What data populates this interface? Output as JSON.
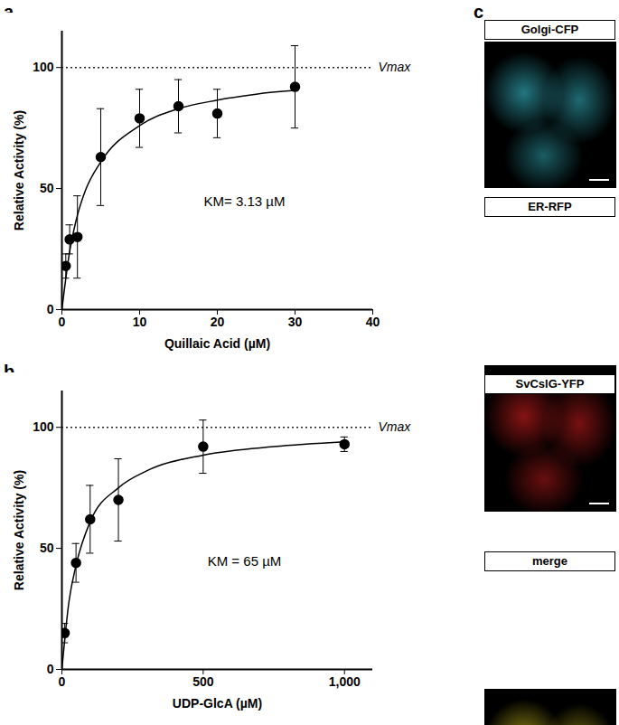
{
  "chart_data": [
    {
      "type": "scatter",
      "title": "a",
      "x_label": "Quillaic Acid (µM)",
      "y_label": "Relative Activity (%)",
      "x": [
        0.5,
        1,
        2,
        5,
        10,
        15,
        20,
        30
      ],
      "values": [
        18,
        29,
        30,
        63,
        79,
        84,
        81,
        92
      ],
      "errors": [
        5,
        6,
        17,
        20,
        12,
        11,
        10,
        17
      ],
      "fit": {
        "x": [
          0,
          1,
          2,
          3,
          5,
          10,
          15,
          20,
          25,
          30
        ],
        "values": [
          0,
          24,
          39,
          49,
          61,
          76,
          83,
          86.5,
          89,
          90.5
        ]
      },
      "reference_line": {
        "value": 100,
        "label": "Vmax"
      },
      "annotations": [
        "KM= 3.13 µM"
      ],
      "color": "#000000",
      "xlim": [
        0,
        40
      ],
      "xticks": [
        0,
        10,
        20,
        30,
        40
      ],
      "ylim": [
        0,
        115
      ],
      "yticks": [
        0,
        50,
        100
      ]
    },
    {
      "type": "scatter",
      "title": "b",
      "x_label": "UDP-GlcA (µM)",
      "y_label": "Relative Activity (%)",
      "x": [
        10,
        50,
        100,
        200,
        500,
        1000
      ],
      "values": [
        15,
        44,
        62,
        70,
        92,
        93
      ],
      "errors": [
        4,
        8,
        14,
        17,
        11,
        3
      ],
      "fit": {
        "x": [
          0,
          25,
          50,
          100,
          200,
          300,
          500,
          750,
          1000
        ],
        "values": [
          0,
          28,
          43,
          61,
          75,
          82,
          88.5,
          92,
          94
        ]
      },
      "reference_line": {
        "value": 100,
        "label": "Vmax"
      },
      "annotations": [
        "KM = 65 µM"
      ],
      "color": "#000000",
      "xlim": [
        0,
        1100
      ],
      "xticks": [
        0,
        500,
        1000
      ],
      "ylim": [
        0,
        115
      ],
      "yticks": [
        0,
        50,
        100
      ]
    }
  ],
  "images": {
    "title": "c",
    "panels": [
      {
        "label": "Golgi-CFP",
        "color": "#39c6d6"
      },
      {
        "label": "ER-RFP",
        "color": "#e02020"
      },
      {
        "label": "SvCslG-YFP",
        "color": "#f0e020"
      },
      {
        "label": "merge",
        "color": "#e8b030"
      }
    ]
  }
}
